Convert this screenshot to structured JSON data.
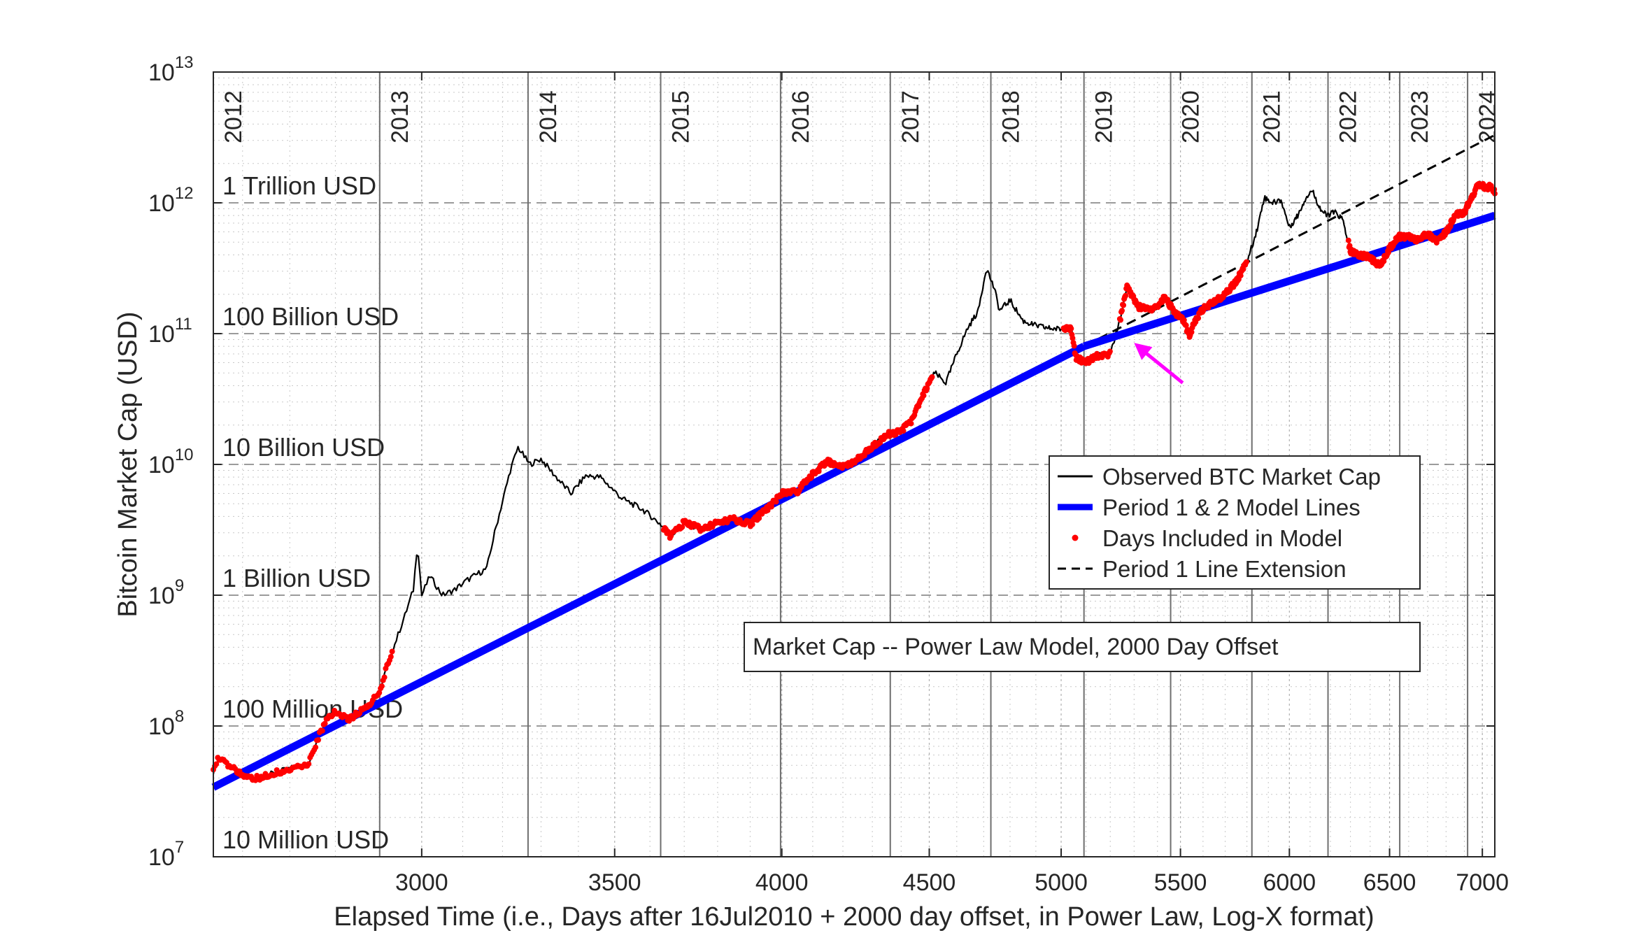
{
  "chart_data": {
    "type": "line",
    "title": "Market Cap -- Power Law Model, 2000 Day Offset",
    "xlabel": "Elapsed Time (i.e., Days after 16Jul2010 + 2000 day offset, in Power Law, Log-X format)",
    "ylabel": "Bitcoin Market Cap (USD)",
    "x_scale": "log",
    "y_scale": "log",
    "xlim": [
      2540,
      7070
    ],
    "ylim": [
      10000000,
      10000000000000
    ],
    "x_ticks": [
      {
        "value": 3000,
        "label": "3000"
      },
      {
        "value": 3500,
        "label": "3500"
      },
      {
        "value": 4000,
        "label": "4000"
      },
      {
        "value": 4500,
        "label": "4500"
      },
      {
        "value": 5000,
        "label": "5000"
      },
      {
        "value": 5500,
        "label": "5500"
      },
      {
        "value": 6000,
        "label": "6000"
      },
      {
        "value": 6500,
        "label": "6500"
      },
      {
        "value": 7000,
        "label": "7000"
      }
    ],
    "y_ticks": [
      {
        "exp": 7,
        "base": "10",
        "sup": "7"
      },
      {
        "exp": 8,
        "base": "10",
        "sup": "8"
      },
      {
        "exp": 9,
        "base": "10",
        "sup": "9"
      },
      {
        "exp": 10,
        "base": "10",
        "sup": "10"
      },
      {
        "exp": 11,
        "base": "10",
        "sup": "11"
      },
      {
        "exp": 12,
        "base": "10",
        "sup": "12"
      },
      {
        "exp": 13,
        "base": "10",
        "sup": "13"
      }
    ],
    "year_markers": [
      {
        "label": "2012",
        "day": 2535
      },
      {
        "label": "2013",
        "day": 2901
      },
      {
        "label": "2014",
        "day": 3266
      },
      {
        "label": "2015",
        "day": 3631
      },
      {
        "label": "2016",
        "day": 3996
      },
      {
        "label": "2017",
        "day": 4362
      },
      {
        "label": "2018",
        "day": 4727
      },
      {
        "label": "2019",
        "day": 5092
      },
      {
        "label": "2020",
        "day": 5457
      },
      {
        "label": "2021",
        "day": 5823
      },
      {
        "label": "2022",
        "day": 6188
      },
      {
        "label": "2023",
        "day": 6553
      },
      {
        "label": "2024",
        "day": 6918
      }
    ],
    "magnitude_labels": [
      {
        "label": "1 Trillion USD",
        "value": 1000000000000
      },
      {
        "label": "100 Billion USD",
        "value": 100000000000
      },
      {
        "label": "10 Billion USD",
        "value": 10000000000
      },
      {
        "label": "1 Billion USD",
        "value": 1000000000
      },
      {
        "label": "100 Million USD",
        "value": 100000000
      },
      {
        "label": "10 Million USD",
        "value": 10000000
      }
    ],
    "legend": {
      "position": "center-right",
      "entries": [
        {
          "label": "Observed BTC Market Cap",
          "style": "line",
          "color": "#000000"
        },
        {
          "label": "Period 1 & 2 Model Lines",
          "style": "thick-line",
          "color": "#0000ff"
        },
        {
          "label": "Days Included in Model",
          "style": "dot",
          "color": "#ff0000"
        },
        {
          "label": "Period 1 Line Extension",
          "style": "dashed",
          "color": "#000000"
        }
      ]
    },
    "series": [
      {
        "name": "Observed BTC Market Cap",
        "color": "#000000",
        "points": [
          [
            2540,
            45000000.0
          ],
          [
            2550,
            58000000.0
          ],
          [
            2580,
            47000000.0
          ],
          [
            2620,
            39000000.0
          ],
          [
            2680,
            45000000.0
          ],
          [
            2740,
            52000000.0
          ],
          [
            2780,
            115000000.0
          ],
          [
            2800,
            130000000.0
          ],
          [
            2830,
            112000000.0
          ],
          [
            2880,
            150000000.0
          ],
          [
            2900,
            180000000.0
          ],
          [
            2920,
            300000000.0
          ],
          [
            2960,
            700000000.0
          ],
          [
            2980,
            1100000000.0
          ],
          [
            2990,
            2500000000.0
          ],
          [
            3000,
            1000000000.0
          ],
          [
            3020,
            1400000000.0
          ],
          [
            3050,
            1000000000.0
          ],
          [
            3080,
            1100000000.0
          ],
          [
            3110,
            1300000000.0
          ],
          [
            3160,
            1600000000.0
          ],
          [
            3180,
            3000000000.0
          ],
          [
            3220,
            9000000000.0
          ],
          [
            3240,
            13500000000.0
          ],
          [
            3270,
            10000000000.0
          ],
          [
            3300,
            11000000000.0
          ],
          [
            3340,
            8000000000.0
          ],
          [
            3380,
            6000000000.0
          ],
          [
            3420,
            8200000000.0
          ],
          [
            3460,
            8000000000.0
          ],
          [
            3520,
            5500000000.0
          ],
          [
            3580,
            4500000000.0
          ],
          [
            3630,
            3500000000.0
          ],
          [
            3660,
            2800000000.0
          ],
          [
            3700,
            3600000000.0
          ],
          [
            3750,
            3200000000.0
          ],
          [
            3800,
            3600000000.0
          ],
          [
            3850,
            3800000000.0
          ],
          [
            3900,
            3500000000.0
          ],
          [
            3950,
            4500000000.0
          ],
          [
            4000,
            6000000000.0
          ],
          [
            4050,
            6200000000.0
          ],
          [
            4100,
            8500000000.0
          ],
          [
            4150,
            10500000000.0
          ],
          [
            4200,
            9500000000.0
          ],
          [
            4250,
            11000000000.0
          ],
          [
            4300,
            13500000000.0
          ],
          [
            4350,
            17000000000.0
          ],
          [
            4400,
            18000000000.0
          ],
          [
            4440,
            22000000000.0
          ],
          [
            4480,
            35000000000.0
          ],
          [
            4520,
            50000000000.0
          ],
          [
            4560,
            42000000000.0
          ],
          [
            4600,
            70000000000.0
          ],
          [
            4640,
            110000000000.0
          ],
          [
            4680,
            150000000000.0
          ],
          [
            4710,
            320000000000.0
          ],
          [
            4740,
            220000000000.0
          ],
          [
            4760,
            150000000000.0
          ],
          [
            4800,
            180000000000.0
          ],
          [
            4850,
            125000000000.0
          ],
          [
            4900,
            115000000000.0
          ],
          [
            4950,
            110000000000.0
          ],
          [
            5000,
            108000000000.0
          ],
          [
            5040,
            110000000000.0
          ],
          [
            5060,
            65000000000.0
          ],
          [
            5100,
            60000000000.0
          ],
          [
            5150,
            68000000000.0
          ],
          [
            5200,
            70000000000.0
          ],
          [
            5240,
            125000000000.0
          ],
          [
            5270,
            230000000000.0
          ],
          [
            5320,
            160000000000.0
          ],
          [
            5380,
            150000000000.0
          ],
          [
            5430,
            190000000000.0
          ],
          [
            5480,
            140000000000.0
          ],
          [
            5510,
            130000000000.0
          ],
          [
            5540,
            95000000000.0
          ],
          [
            5560,
            120000000000.0
          ],
          [
            5600,
            155000000000.0
          ],
          [
            5650,
            175000000000.0
          ],
          [
            5700,
            200000000000.0
          ],
          [
            5750,
            250000000000.0
          ],
          [
            5800,
            350000000000.0
          ],
          [
            5850,
            650000000000.0
          ],
          [
            5880,
            1100000000000.0
          ],
          [
            5920,
            1000000000000.0
          ],
          [
            5960,
            1050000000000.0
          ],
          [
            6000,
            650000000000.0
          ],
          [
            6040,
            800000000000.0
          ],
          [
            6080,
            1100000000000.0
          ],
          [
            6110,
            1250000000000.0
          ],
          [
            6150,
            900000000000.0
          ],
          [
            6180,
            800000000000.0
          ],
          [
            6220,
            850000000000.0
          ],
          [
            6260,
            750000000000.0
          ],
          [
            6300,
            430000000000.0
          ],
          [
            6350,
            400000000000.0
          ],
          [
            6400,
            380000000000.0
          ],
          [
            6450,
            330000000000.0
          ],
          [
            6500,
            450000000000.0
          ],
          [
            6550,
            550000000000.0
          ],
          [
            6600,
            550000000000.0
          ],
          [
            6650,
            520000000000.0
          ],
          [
            6700,
            580000000000.0
          ],
          [
            6750,
            500000000000.0
          ],
          [
            6800,
            600000000000.0
          ],
          [
            6850,
            800000000000.0
          ],
          [
            6900,
            850000000000.0
          ],
          [
            6940,
            1100000000000.0
          ],
          [
            6980,
            1400000000000.0
          ],
          [
            7020,
            1300000000000.0
          ],
          [
            7050,
            1350000000000.0
          ],
          [
            7070,
            1200000000000.0
          ]
        ]
      },
      {
        "name": "Period 1 & 2 Model Lines",
        "color": "#0000ff",
        "segments": [
          [
            [
              2540,
              34000000.0
            ],
            [
              5092,
              80000000000.0
            ]
          ],
          [
            [
              5092,
              80000000000.0
            ],
            [
              7070,
              800000000000.0
            ]
          ]
        ]
      },
      {
        "name": "Days Included in Model",
        "color": "#ff0000",
        "ranges": [
          [
            2540,
            2930
          ],
          [
            3640,
            4510
          ],
          [
            5010,
            5200
          ],
          [
            5240,
            5800
          ],
          [
            6290,
            7070
          ]
        ]
      },
      {
        "name": "Period 1 Line Extension",
        "color": "#000000",
        "segments": [
          [
            [
              5092,
              80000000000.0
            ],
            [
              7070,
              3300000000000.0
            ]
          ]
        ]
      }
    ],
    "annotations": [
      {
        "type": "arrow",
        "color": "#ff00ff",
        "from": [
          5510,
          42000000000.0
        ],
        "to": [
          5300,
          85000000000.0
        ]
      }
    ]
  }
}
